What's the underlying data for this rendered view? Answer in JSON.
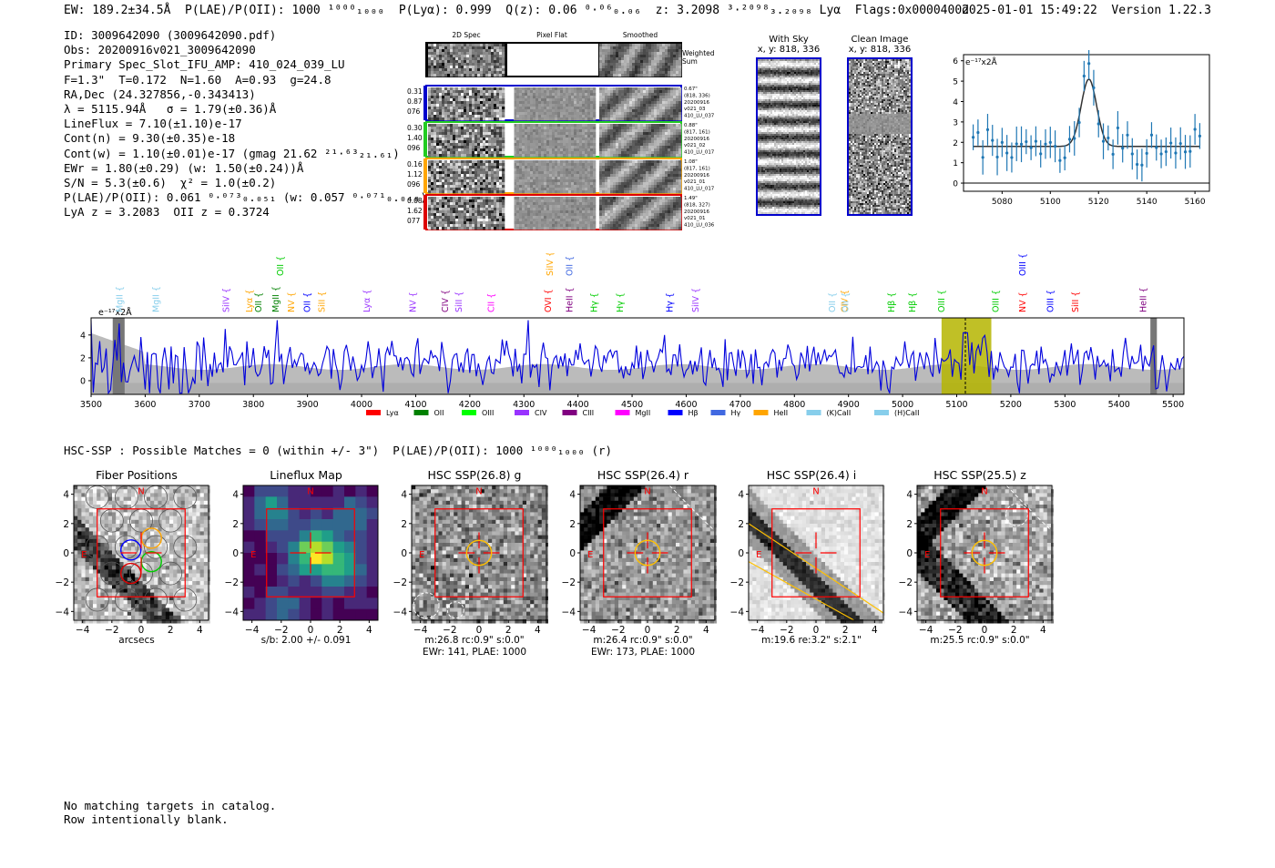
{
  "header": {
    "left": "EW: 189.2±34.5Å  P(LAE)/P(OII): 1000 ¹⁰⁰⁰₁₀₀₀  P(Lyα): 0.999  Q(z): 0.06 ⁰·⁰⁶₀.₀₆  z: 3.2098 ³·²⁰⁹⁸₃.₂₀₉₈ Lyα  Flags:0x0000400d",
    "right": "2025-01-01 15:49:22  Version 1.22.3"
  },
  "info": [
    "ID: 3009642090 (3009642090.pdf)",
    "Obs: 20200916v021_3009642090",
    "Primary Spec_Slot_IFU_AMP: 410_024_039_LU",
    "F=1.3\"  T=0.172  N=1.60  A=0.93  g=24.8",
    "RA,Dec (24.327856,-0.343413)",
    "λ = 5115.94Å   σ = 1.79(±0.36)Å",
    "LineFlux = 7.10(±1.10)e-17",
    "Cont(n) = 9.30(±0.35)e-18",
    "Cont(w) = 1.10(±0.01)e-17 (gmag 21.62 ²¹·⁶³₂₁.₆₁)",
    "EWr = 1.80(±0.29) (w: 1.50(±0.24))Å",
    "S/N = 5.3(±0.6)  χ² = 1.0(±0.2)",
    "P(LAE)/P(OII): 0.061 ⁰·⁰⁷³₀.₀₅₁ (w: 0.057 ⁰·⁰⁷¹₀.₀₄₈)",
    "LyA z = 3.2083  OII z = 0.3724"
  ],
  "cutouts": {
    "headers": [
      "2D Spec",
      "Pixel Flat",
      "Smoothed"
    ],
    "weighted_label": "Weighted Sum",
    "rows": [
      {
        "left": [
          "0.31",
          "0.87",
          "076"
        ],
        "right": [
          "0.67\"",
          "(818, 336)",
          "20200916",
          "v021_03",
          "410_LU_037"
        ],
        "color": "#0000cc"
      },
      {
        "left": [
          "0.30",
          "1.40",
          "096"
        ],
        "right": [
          "0.88\"",
          "(817, 161)",
          "20200916",
          "v021_02",
          "410_LU_017"
        ],
        "color": "#22cc22"
      },
      {
        "left": [
          "0.16",
          "1.12",
          "096"
        ],
        "right": [
          "1.08\"",
          "(817, 161)",
          "20200916",
          "v021_01",
          "410_LU_017"
        ],
        "color": "#ffa500"
      },
      {
        "left": [
          "0.08",
          "1.62",
          "077"
        ],
        "right": [
          "1.49\"",
          "(818, 327)",
          "20200916",
          "v021_01",
          "410_LU_036"
        ],
        "color": "#dd0000"
      }
    ]
  },
  "with_sky": {
    "title": "With Sky",
    "coords": "x, y: 818, 336"
  },
  "clean_image": {
    "title": "Clean Image",
    "coords": "x, y: 818, 336"
  },
  "zoom_plot": {
    "ylabel": "e⁻¹⁷x2Å",
    "xticks": [
      "5080",
      "5100",
      "5120",
      "5140",
      "5160"
    ],
    "yticks": [
      "0",
      "1",
      "2",
      "3",
      "4",
      "5",
      "6"
    ]
  },
  "spectrum": {
    "ylabel": "e⁻¹⁷x2Å",
    "xticks": [
      "3500",
      "3600",
      "3700",
      "3800",
      "3900",
      "4000",
      "4100",
      "4200",
      "4300",
      "4400",
      "4500",
      "4600",
      "4700",
      "4800",
      "4900",
      "5000",
      "5100",
      "5200",
      "5300",
      "5400",
      "5500"
    ],
    "yticks": [
      "0",
      "2",
      "4"
    ],
    "legend": [
      {
        "name": "Lyα",
        "color": "#ff0000"
      },
      {
        "name": "OII",
        "color": "#008000"
      },
      {
        "name": "OIII",
        "color": "#00ff00"
      },
      {
        "name": "CIV",
        "color": "#9933ff"
      },
      {
        "name": "CIII",
        "color": "#800080"
      },
      {
        "name": "MgII",
        "color": "#ff00ff"
      },
      {
        "name": "Hβ",
        "color": "#0000ff"
      },
      {
        "name": "Hγ",
        "color": "#4169e1"
      },
      {
        "name": "HeII",
        "color": "#ffa500"
      },
      {
        "name": "(K)CaII",
        "color": "#87ceeb"
      },
      {
        "name": "(H)CaII",
        "color": "#87ceeb"
      }
    ],
    "line_labels": [
      {
        "t": "MgII",
        "x": 3553,
        "row": 1,
        "c": "#87ceeb"
      },
      {
        "t": "MgII",
        "x": 3620,
        "row": 1,
        "c": "#87ceeb"
      },
      {
        "t": "SiIV",
        "x": 3750,
        "row": 1,
        "c": "#9933ff"
      },
      {
        "t": "Lyα",
        "x": 3793,
        "row": 1,
        "c": "#ffa500"
      },
      {
        "t": "OII",
        "x": 3810,
        "row": 1,
        "c": "#008000"
      },
      {
        "t": "MgII",
        "x": 3842,
        "row": 1,
        "c": "#008000"
      },
      {
        "t": "OII",
        "x": 3850,
        "row": 0,
        "c": "#00cc00"
      },
      {
        "t": "NV",
        "x": 3870,
        "row": 1,
        "c": "#ffa500"
      },
      {
        "t": "OII",
        "x": 3900,
        "row": 1,
        "c": "#0000ff"
      },
      {
        "t": "SiII",
        "x": 3927,
        "row": 1,
        "c": "#ffa500"
      },
      {
        "t": "Lyα",
        "x": 4010,
        "row": 1,
        "c": "#9933ff"
      },
      {
        "t": "NV",
        "x": 4095,
        "row": 1,
        "c": "#9933ff"
      },
      {
        "t": "CIV",
        "x": 4155,
        "row": 1,
        "c": "#800080"
      },
      {
        "t": "SiII",
        "x": 4180,
        "row": 1,
        "c": "#9933ff"
      },
      {
        "t": "CII",
        "x": 4240,
        "row": 1,
        "c": "#ff00ff"
      },
      {
        "t": "OVI",
        "x": 4345,
        "row": 1,
        "c": "#ff0000"
      },
      {
        "t": "SiIV",
        "x": 4348,
        "row": 0,
        "c": "#ffa500"
      },
      {
        "t": "OII",
        "x": 4385,
        "row": 0,
        "c": "#4169e1"
      },
      {
        "t": "HeII",
        "x": 4385,
        "row": 1,
        "c": "#800080"
      },
      {
        "t": "Hγ",
        "x": 4430,
        "row": 1,
        "c": "#00cc00"
      },
      {
        "t": "Hγ",
        "x": 4478,
        "row": 1,
        "c": "#00cc00"
      },
      {
        "t": "Hγ",
        "x": 4570,
        "row": 1,
        "c": "#0000ff"
      },
      {
        "t": "SiIV",
        "x": 4618,
        "row": 1,
        "c": "#9933ff"
      },
      {
        "t": "OII",
        "x": 4870,
        "row": 1,
        "c": "#87ceeb"
      },
      {
        "t": "CIV",
        "x": 4893,
        "row": 1,
        "c": "#ffa500"
      },
      {
        "t": "OII",
        "x": 4895,
        "row": 1,
        "c": "#87ceeb"
      },
      {
        "t": "Hβ",
        "x": 4980,
        "row": 1,
        "c": "#00cc00"
      },
      {
        "t": "Hβ",
        "x": 5018,
        "row": 1,
        "c": "#00cc00"
      },
      {
        "t": "OIII",
        "x": 5072,
        "row": 1,
        "c": "#00cc00"
      },
      {
        "t": "OIII",
        "x": 5172,
        "row": 1,
        "c": "#00cc00"
      },
      {
        "t": "NV",
        "x": 5222,
        "row": 1,
        "c": "#ff0000"
      },
      {
        "t": "OIII",
        "x": 5222,
        "row": 0,
        "c": "#0000ff"
      },
      {
        "t": "OIII",
        "x": 5273,
        "row": 1,
        "c": "#0000ff"
      },
      {
        "t": "SiII",
        "x": 5320,
        "row": 1,
        "c": "#ff0000"
      },
      {
        "t": "HeII",
        "x": 5445,
        "row": 1,
        "c": "#800080"
      }
    ]
  },
  "hsc_header": "HSC-SSP : Possible Matches = 0 (within +/- 3\")  P(LAE)/P(OII): 1000 ¹⁰⁰⁰₁₀₀₀ (r)",
  "panels": [
    {
      "title": "Fiber Positions",
      "sub1": "arcsecs",
      "sub2": ""
    },
    {
      "title": "Lineflux Map",
      "sub1": "s/b: 2.00 +/- 0.091",
      "sub2": ""
    },
    {
      "title": "HSC SSP(26.8) g",
      "sub1": "m:26.8 rc:0.9\"  s:0.0\"",
      "sub2": "EWr: 141, PLAE: 1000"
    },
    {
      "title": "HSC SSP(26.4) r",
      "sub1": "m:26.4 rc:0.9\"  s:0.0\"",
      "sub2": "EWr: 173, PLAE: 1000"
    },
    {
      "title": "HSC SSP(26.4) i",
      "sub1": "m:19.6  re:3.2\"  s:2.1\"",
      "sub2": ""
    },
    {
      "title": "HSC SSP(25.5) z",
      "sub1": "m:25.5 rc:0.9\"  s:0.0\"",
      "sub2": ""
    }
  ],
  "panel_ticks": {
    "x": [
      "−4",
      "−2",
      "0",
      "2",
      "4"
    ],
    "y": [
      "4",
      "2",
      "0",
      "−2",
      "−4"
    ],
    "north": "N",
    "east": "E"
  },
  "footer": [
    "No matching targets in catalog.",
    "Row intentionally blank."
  ]
}
